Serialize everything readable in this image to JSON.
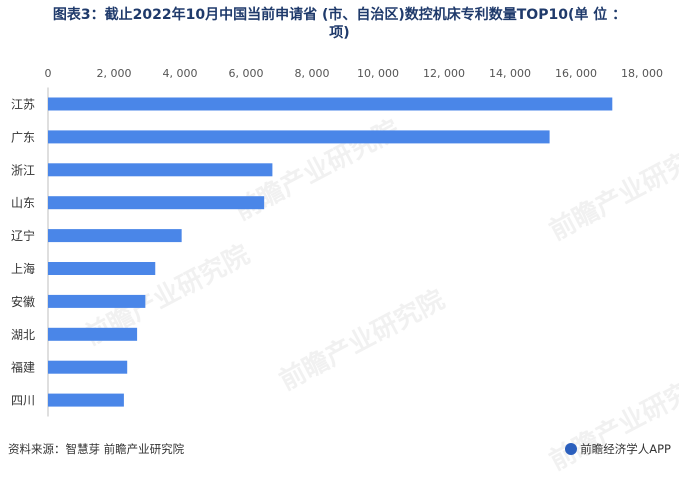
{
  "title": {
    "line1": "图表3：截止2022年10月中国当前申请省 (市、自治区)数控机床专利数量TOP10(单 位 ：",
    "line2": "项)"
  },
  "chart_data": {
    "type": "bar",
    "orientation": "horizontal",
    "categories": [
      "江苏",
      "广东",
      "浙江",
      "山东",
      "辽宁",
      "上海",
      "安徽",
      "湖北",
      "福建",
      "四川"
    ],
    "values": [
      17100,
      15200,
      6800,
      6550,
      4050,
      3250,
      2950,
      2700,
      2400,
      2300
    ],
    "xlim": [
      0,
      18000
    ],
    "xticks": [
      0,
      2000,
      4000,
      6000,
      8000,
      10000,
      12000,
      14000,
      16000,
      18000
    ],
    "xtick_labels": [
      "0",
      "2, 000",
      "4, 000",
      "6, 000",
      "8, 000",
      "10, 000",
      "12, 000",
      "14, 000",
      "16, 000",
      "18, 000"
    ],
    "axis_position": "top",
    "grid": false,
    "bar_color": "#4a86e8"
  },
  "watermark": "前瞻产业研究院",
  "footer": {
    "source": "资料来源：智慧芽 前瞻产业研究院",
    "brand": "前瞻经济学人APP"
  }
}
